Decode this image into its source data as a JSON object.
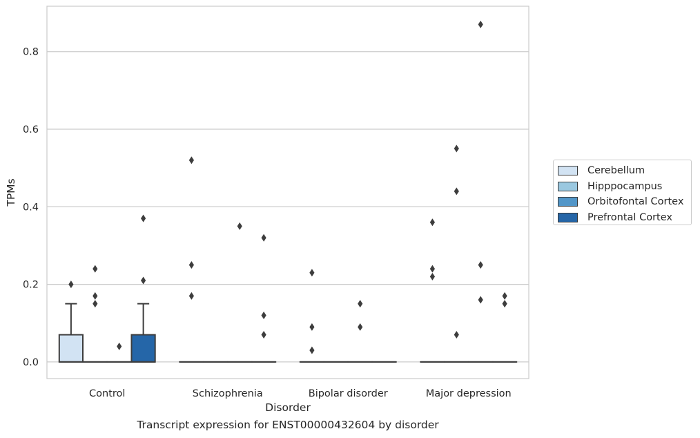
{
  "chart_data": {
    "type": "box",
    "title": "",
    "caption": "Transcript expression for ENST00000432604 by disorder",
    "xlabel": "Disorder",
    "ylabel": "TPMs",
    "ylim": [
      -0.043,
      0.917
    ],
    "yticks": [
      0.0,
      0.2,
      0.4,
      0.6,
      0.8
    ],
    "ytick_labels": [
      "0.0",
      "0.2",
      "0.4",
      "0.6",
      "0.8"
    ],
    "grid": "horizontal",
    "legend_position": "right",
    "categories": [
      "Control",
      "Schizophrenia",
      "Bipolar disorder",
      "Major depression"
    ],
    "series": [
      {
        "name": "Cerebellum",
        "color": "#d2e3f3"
      },
      {
        "name": "Hipppocampus",
        "color": "#9ac8e0"
      },
      {
        "name": "Orbitofontal Cortex",
        "color": "#5296c8"
      },
      {
        "name": "Prefrontal Cortex",
        "color": "#2566a8"
      }
    ],
    "boxes": [
      {
        "category": "Control",
        "series": "Cerebellum",
        "q1": 0.0,
        "median": 0.0,
        "q3": 0.07,
        "whisker_low": 0.0,
        "whisker_high": 0.15,
        "outliers": [
          0.2
        ]
      },
      {
        "category": "Control",
        "series": "Hipppocampus",
        "q1": 0.0,
        "median": 0.0,
        "q3": 0.0,
        "whisker_low": 0.0,
        "whisker_high": 0.0,
        "outliers": [
          0.24,
          0.17,
          0.15
        ]
      },
      {
        "category": "Control",
        "series": "Orbitofontal Cortex",
        "q1": 0.0,
        "median": 0.0,
        "q3": 0.0,
        "whisker_low": 0.0,
        "whisker_high": 0.0,
        "outliers": [
          0.04
        ]
      },
      {
        "category": "Control",
        "series": "Prefrontal Cortex",
        "q1": 0.0,
        "median": 0.0,
        "q3": 0.07,
        "whisker_low": 0.0,
        "whisker_high": 0.15,
        "outliers": [
          0.37,
          0.21
        ]
      },
      {
        "category": "Schizophrenia",
        "series": "Cerebellum",
        "q1": 0.0,
        "median": 0.0,
        "q3": 0.0,
        "whisker_low": 0.0,
        "whisker_high": 0.0,
        "outliers": [
          0.52,
          0.25,
          0.17
        ]
      },
      {
        "category": "Schizophrenia",
        "series": "Hipppocampus",
        "q1": 0.0,
        "median": 0.0,
        "q3": 0.0,
        "whisker_low": 0.0,
        "whisker_high": 0.0,
        "outliers": []
      },
      {
        "category": "Schizophrenia",
        "series": "Orbitofontal Cortex",
        "q1": 0.0,
        "median": 0.0,
        "q3": 0.0,
        "whisker_low": 0.0,
        "whisker_high": 0.0,
        "outliers": [
          0.35
        ]
      },
      {
        "category": "Schizophrenia",
        "series": "Prefrontal Cortex",
        "q1": 0.0,
        "median": 0.0,
        "q3": 0.0,
        "whisker_low": 0.0,
        "whisker_high": 0.0,
        "outliers": [
          0.32,
          0.12,
          0.07
        ]
      },
      {
        "category": "Bipolar disorder",
        "series": "Cerebellum",
        "q1": 0.0,
        "median": 0.0,
        "q3": 0.0,
        "whisker_low": 0.0,
        "whisker_high": 0.0,
        "outliers": [
          0.23,
          0.09,
          0.03
        ]
      },
      {
        "category": "Bipolar disorder",
        "series": "Hipppocampus",
        "q1": 0.0,
        "median": 0.0,
        "q3": 0.0,
        "whisker_low": 0.0,
        "whisker_high": 0.0,
        "outliers": []
      },
      {
        "category": "Bipolar disorder",
        "series": "Orbitofontal Cortex",
        "q1": 0.0,
        "median": 0.0,
        "q3": 0.0,
        "whisker_low": 0.0,
        "whisker_high": 0.0,
        "outliers": [
          0.15,
          0.09
        ]
      },
      {
        "category": "Bipolar disorder",
        "series": "Prefrontal Cortex",
        "q1": 0.0,
        "median": 0.0,
        "q3": 0.0,
        "whisker_low": 0.0,
        "whisker_high": 0.0,
        "outliers": []
      },
      {
        "category": "Major depression",
        "series": "Cerebellum",
        "q1": 0.0,
        "median": 0.0,
        "q3": 0.0,
        "whisker_low": 0.0,
        "whisker_high": 0.0,
        "outliers": [
          0.36,
          0.24,
          0.22
        ]
      },
      {
        "category": "Major depression",
        "series": "Hipppocampus",
        "q1": 0.0,
        "median": 0.0,
        "q3": 0.0,
        "whisker_low": 0.0,
        "whisker_high": 0.0,
        "outliers": [
          0.55,
          0.44,
          0.07
        ]
      },
      {
        "category": "Major depression",
        "series": "Orbitofontal Cortex",
        "q1": 0.0,
        "median": 0.0,
        "q3": 0.0,
        "whisker_low": 0.0,
        "whisker_high": 0.0,
        "outliers": [
          0.87,
          0.25,
          0.16
        ]
      },
      {
        "category": "Major depression",
        "series": "Prefrontal Cortex",
        "q1": 0.0,
        "median": 0.0,
        "q3": 0.0,
        "whisker_low": 0.0,
        "whisker_high": 0.0,
        "outliers": [
          0.17,
          0.15
        ]
      }
    ]
  }
}
